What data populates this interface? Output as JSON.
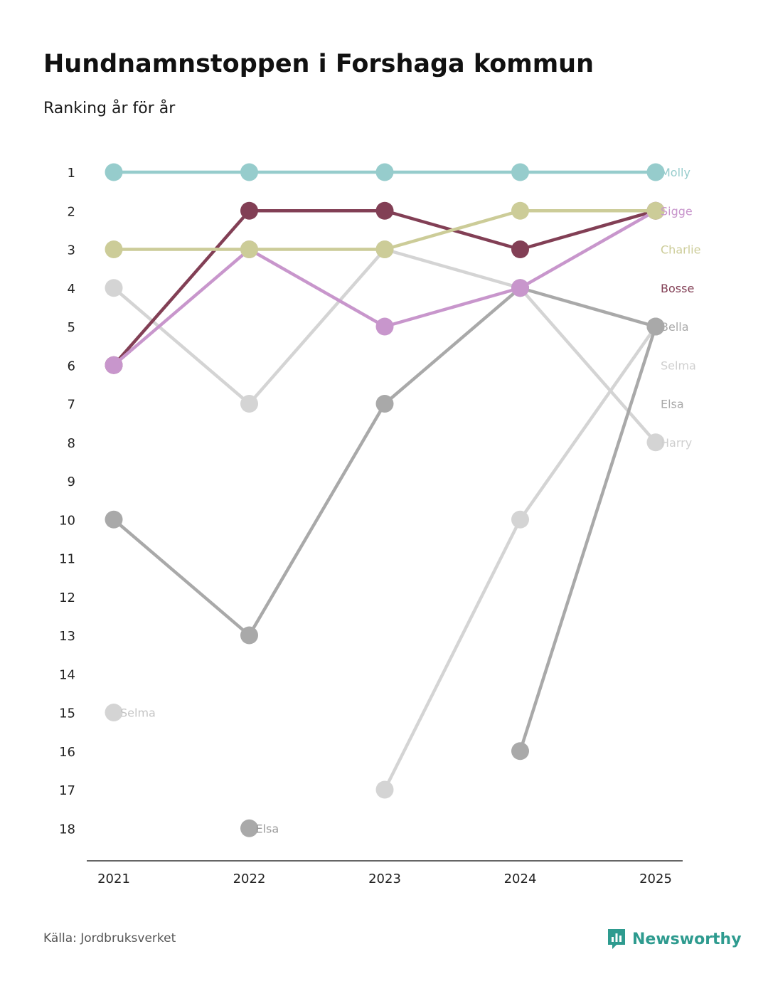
{
  "title": "Hundnamnstoppen i Forshaga kommun",
  "subtitle": "Ranking år för år",
  "source": "Källa: Jordbruksverket",
  "brand": {
    "name": "Newsworthy",
    "icon": "newsworthy-logo-icon",
    "color": "#2e9b8f"
  },
  "chart_data": {
    "type": "line",
    "title": "Hundnamnstoppen i Forshaga kommun",
    "subtitle": "Ranking år för år",
    "xlabel": "",
    "ylabel": "",
    "x": [
      "2021",
      "2022",
      "2023",
      "2024",
      "2025"
    ],
    "y_ticks": [
      "1",
      "2",
      "3",
      "4",
      "5",
      "6",
      "7",
      "8",
      "9",
      "10",
      "11",
      "12",
      "13",
      "14",
      "15",
      "16",
      "17",
      "18"
    ],
    "ylim": [
      1,
      18
    ],
    "y_inverted": true,
    "legend": "right-end labels",
    "series": [
      {
        "name": "Harry",
        "color": "#d4d4d4",
        "values": [
          4,
          7,
          3,
          4,
          8
        ],
        "start_label": ""
      },
      {
        "name": "Selma",
        "color": "#d4d4d4",
        "values": [
          15,
          null,
          17,
          10,
          5
        ],
        "start_label": "Selma"
      },
      {
        "name": "Elsa",
        "color": "#a9a9a9",
        "values": [
          null,
          18,
          null,
          16,
          5
        ],
        "start_label": "Elsa"
      },
      {
        "name": "Bella",
        "color": "#a9a9a9",
        "values": [
          10,
          13,
          7,
          4,
          5
        ],
        "start_label": ""
      },
      {
        "name": "Bosse",
        "color": "#823f55",
        "values": [
          6,
          2,
          2,
          3,
          2
        ],
        "start_label": ""
      },
      {
        "name": "Sigge",
        "color": "#c896cc",
        "values": [
          6,
          3,
          5,
          4,
          2
        ],
        "start_label": ""
      },
      {
        "name": "Charlie",
        "color": "#cccc98",
        "values": [
          3,
          3,
          3,
          2,
          2
        ],
        "start_label": ""
      },
      {
        "name": "Molly",
        "color": "#96cccc",
        "values": [
          1,
          1,
          1,
          1,
          1
        ],
        "start_label": ""
      }
    ],
    "end_labels": [
      {
        "name": "Molly",
        "color": "#96cccc"
      },
      {
        "name": "Sigge",
        "color": "#c896cc"
      },
      {
        "name": "Charlie",
        "color": "#cccc98"
      },
      {
        "name": "Bosse",
        "color": "#823f55"
      },
      {
        "name": "Bella",
        "color": "#a9a9a9"
      },
      {
        "name": "Selma",
        "color": "#d4d4d4"
      },
      {
        "name": "Elsa",
        "color": "#a9a9a9"
      },
      {
        "name": "Harry",
        "color": "#d4d4d4"
      }
    ]
  }
}
